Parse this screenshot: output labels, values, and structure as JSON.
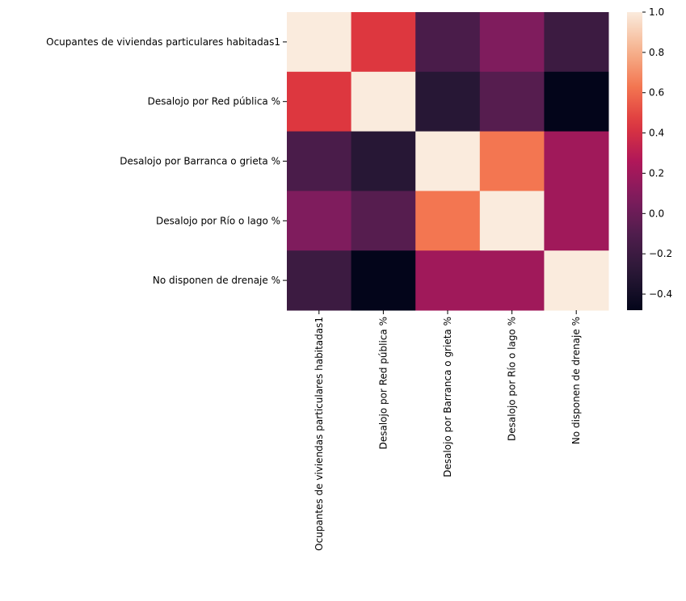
{
  "chart_data": {
    "type": "heatmap",
    "title": "",
    "xlabel": "",
    "ylabel": "",
    "rows": [
      "Ocupantes de viviendas particulares habitadas1",
      "Desalojo por Red pública %",
      "Desalojo por Barranca o grieta %",
      "Desalojo por Río o lago %",
      "No disponen de drenaje %"
    ],
    "columns": [
      "Ocupantes de viviendas particulares habitadas1",
      "Desalojo por Red pública %",
      "Desalojo por Barranca o grieta %",
      "Desalojo por Río o lago %",
      "No disponen de drenaje %"
    ],
    "values": [
      [
        1.0,
        0.44,
        -0.13,
        0.08,
        -0.2
      ],
      [
        0.44,
        1.0,
        -0.3,
        -0.08,
        -0.48
      ],
      [
        -0.13,
        -0.3,
        1.0,
        0.63,
        0.2
      ],
      [
        0.08,
        -0.08,
        0.63,
        1.0,
        0.2
      ],
      [
        -0.2,
        -0.48,
        0.2,
        0.2,
        1.0
      ]
    ],
    "colorbar": {
      "min": -0.48,
      "max": 1.0,
      "ticks": [
        -0.4,
        -0.2,
        0.0,
        0.2,
        0.4,
        0.6,
        0.8,
        1.0
      ],
      "tick_labels": [
        "−0.4",
        "−0.2",
        "0.0",
        "0.2",
        "0.4",
        "0.6",
        "0.8",
        "1.0"
      ],
      "colormap": "rocket"
    },
    "grid": false,
    "legend": "colorbar-right"
  }
}
